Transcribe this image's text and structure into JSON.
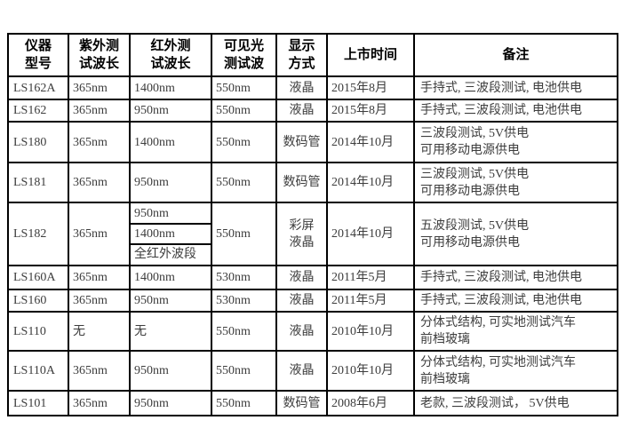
{
  "colors": {
    "background": "#ffffff",
    "border": "#000000",
    "header_text": "#000000",
    "body_text": "#3d3d3d"
  },
  "table": {
    "columns": [
      {
        "key": "model",
        "label": "仪器\n型号"
      },
      {
        "key": "uv",
        "label": "紫外测\n试波长"
      },
      {
        "key": "ir",
        "label": "红外测\n试波长"
      },
      {
        "key": "visible",
        "label": "可见光\n测试波"
      },
      {
        "key": "display",
        "label": "显示\n方式"
      },
      {
        "key": "launch",
        "label": "上市时间"
      },
      {
        "key": "remark",
        "label": "备注"
      }
    ],
    "rows": [
      {
        "model": "LS162A",
        "uv": "365nm",
        "ir": "1400nm",
        "visible": "550nm",
        "display": "液晶",
        "launch": "2015年8月",
        "remark": "手持式, 三波段测试, 电池供电"
      },
      {
        "model": "LS162",
        "uv": "365nm",
        "ir": "950nm",
        "visible": "550nm",
        "display": "液晶",
        "launch": "2015年8月",
        "remark": "手持式, 三波段测试, 电池供电"
      },
      {
        "model": "LS180",
        "uv": "365nm",
        "ir": "1400nm",
        "visible": "550nm",
        "display": "数码管",
        "launch": "2014年10月",
        "remark": "三波段测试, 5V供电\n可用移动电源供电"
      },
      {
        "model": "LS181",
        "uv": "365nm",
        "ir": "950nm",
        "visible": "550nm",
        "display": "数码管",
        "launch": "2014年10月",
        "remark": "三波段测试, 5V供电\n可用移动电源供电"
      },
      {
        "model": "LS182",
        "uv": "365nm",
        "ir": [
          "950nm",
          "1400nm",
          "全红外波段"
        ],
        "visible": "550nm",
        "display": "彩屏\n液晶",
        "launch": "2014年10月",
        "remark": "五波段测试, 5V供电\n可用移动电源供电"
      },
      {
        "model": "LS160A",
        "uv": "365nm",
        "ir": "1400nm",
        "visible": "530nm",
        "display": "液晶",
        "launch": "2011年5月",
        "remark": "手持式, 三波段测试, 电池供电"
      },
      {
        "model": "LS160",
        "uv": "365nm",
        "ir": "950nm",
        "visible": "530nm",
        "display": "液晶",
        "launch": "2011年5月",
        "remark": "手持式, 三波段测试, 电池供电"
      },
      {
        "model": "LS110",
        "uv": "无",
        "ir": "无",
        "visible": "550nm",
        "display": "液晶",
        "launch": "2010年10月",
        "remark": "分体式结构, 可实地测试汽车\n前档玻璃"
      },
      {
        "model": "LS110A",
        "uv": "365nm",
        "ir": "950nm",
        "visible": "550nm",
        "display": "液晶",
        "launch": "2010年10月",
        "remark": "分体式结构, 可实地测试汽车\n前档玻璃"
      },
      {
        "model": "LS101",
        "uv": "365nm",
        "ir": "950nm",
        "visible": "550nm",
        "display": "数码管",
        "launch": "2008年6月",
        "remark": "老款, 三波段测试， 5V供电"
      }
    ]
  }
}
